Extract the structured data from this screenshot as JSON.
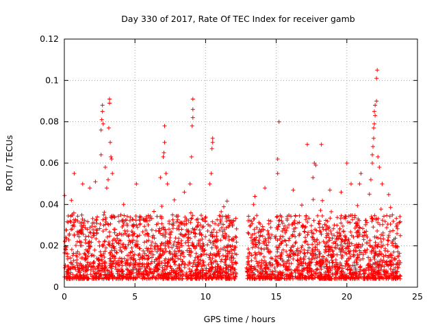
{
  "chart_data": {
    "type": "scatter",
    "title": "Day 330 of 2017, Rate Of TEC Index for receiver gamb",
    "xlabel": "GPS time / hours",
    "ylabel": "ROTI / TECUs",
    "xlim": [
      0,
      25
    ],
    "ylim": [
      0,
      0.12
    ],
    "x_ticks": [
      0,
      5,
      10,
      15,
      20,
      25
    ],
    "x_tick_labels": [
      "0",
      "5",
      "10",
      "15",
      "20",
      "25"
    ],
    "y_ticks": [
      0,
      0.02,
      0.04,
      0.06,
      0.08,
      0.1,
      0.12
    ],
    "y_tick_labels": [
      "0",
      "0.02",
      "0.04",
      "0.06",
      "0.08",
      "0.1",
      "0.12"
    ],
    "grid": true,
    "marker": "+",
    "color": "#ff0000",
    "data_gap_hours": [
      12.2,
      12.9
    ],
    "series": [
      {
        "name": "ROTI",
        "x_range": [
          0,
          23.8
        ],
        "typical_range": [
          0.004,
          0.035
        ],
        "outliers": [
          {
            "x": 0.5,
            "y": 0.042
          },
          {
            "x": 0.7,
            "y": 0.055
          },
          {
            "x": 1.3,
            "y": 0.05
          },
          {
            "x": 1.8,
            "y": 0.048
          },
          {
            "x": 2.2,
            "y": 0.051
          },
          {
            "x": 2.6,
            "y": 0.064
          },
          {
            "x": 2.6,
            "y": 0.076
          },
          {
            "x": 2.65,
            "y": 0.081
          },
          {
            "x": 2.7,
            "y": 0.085
          },
          {
            "x": 2.7,
            "y": 0.088
          },
          {
            "x": 2.75,
            "y": 0.079
          },
          {
            "x": 2.9,
            "y": 0.058
          },
          {
            "x": 3.0,
            "y": 0.048
          },
          {
            "x": 3.1,
            "y": 0.052
          },
          {
            "x": 3.15,
            "y": 0.077
          },
          {
            "x": 3.2,
            "y": 0.089
          },
          {
            "x": 3.2,
            "y": 0.091
          },
          {
            "x": 3.25,
            "y": 0.07
          },
          {
            "x": 3.3,
            "y": 0.063
          },
          {
            "x": 3.35,
            "y": 0.062
          },
          {
            "x": 3.4,
            "y": 0.055
          },
          {
            "x": 4.2,
            "y": 0.04
          },
          {
            "x": 5.1,
            "y": 0.05
          },
          {
            "x": 6.8,
            "y": 0.053
          },
          {
            "x": 7.0,
            "y": 0.063
          },
          {
            "x": 7.05,
            "y": 0.065
          },
          {
            "x": 7.1,
            "y": 0.07
          },
          {
            "x": 7.1,
            "y": 0.078
          },
          {
            "x": 7.2,
            "y": 0.055
          },
          {
            "x": 7.3,
            "y": 0.05
          },
          {
            "x": 8.5,
            "y": 0.046
          },
          {
            "x": 8.9,
            "y": 0.05
          },
          {
            "x": 9.0,
            "y": 0.063
          },
          {
            "x": 9.05,
            "y": 0.078
          },
          {
            "x": 9.1,
            "y": 0.082
          },
          {
            "x": 9.1,
            "y": 0.086
          },
          {
            "x": 9.1,
            "y": 0.091
          },
          {
            "x": 10.3,
            "y": 0.05
          },
          {
            "x": 10.4,
            "y": 0.055
          },
          {
            "x": 10.45,
            "y": 0.067
          },
          {
            "x": 10.5,
            "y": 0.072
          },
          {
            "x": 10.5,
            "y": 0.07
          },
          {
            "x": 13.4,
            "y": 0.04
          },
          {
            "x": 14.2,
            "y": 0.048
          },
          {
            "x": 15.1,
            "y": 0.055
          },
          {
            "x": 15.1,
            "y": 0.062
          },
          {
            "x": 15.2,
            "y": 0.08
          },
          {
            "x": 16.2,
            "y": 0.047
          },
          {
            "x": 17.2,
            "y": 0.069
          },
          {
            "x": 17.6,
            "y": 0.053
          },
          {
            "x": 17.7,
            "y": 0.06
          },
          {
            "x": 17.8,
            "y": 0.059
          },
          {
            "x": 18.2,
            "y": 0.069
          },
          {
            "x": 18.8,
            "y": 0.047
          },
          {
            "x": 19.6,
            "y": 0.046
          },
          {
            "x": 20.0,
            "y": 0.06
          },
          {
            "x": 20.3,
            "y": 0.05
          },
          {
            "x": 20.9,
            "y": 0.05
          },
          {
            "x": 21.0,
            "y": 0.055
          },
          {
            "x": 21.6,
            "y": 0.045
          },
          {
            "x": 21.7,
            "y": 0.052
          },
          {
            "x": 21.8,
            "y": 0.06
          },
          {
            "x": 21.8,
            "y": 0.064
          },
          {
            "x": 21.85,
            "y": 0.068
          },
          {
            "x": 21.9,
            "y": 0.072
          },
          {
            "x": 21.9,
            "y": 0.077
          },
          {
            "x": 21.95,
            "y": 0.079
          },
          {
            "x": 21.95,
            "y": 0.085
          },
          {
            "x": 22.0,
            "y": 0.088
          },
          {
            "x": 22.0,
            "y": 0.083
          },
          {
            "x": 22.1,
            "y": 0.09
          },
          {
            "x": 22.1,
            "y": 0.101
          },
          {
            "x": 22.15,
            "y": 0.105
          },
          {
            "x": 22.2,
            "y": 0.063
          },
          {
            "x": 22.3,
            "y": 0.058
          },
          {
            "x": 22.5,
            "y": 0.05
          }
        ]
      }
    ]
  }
}
